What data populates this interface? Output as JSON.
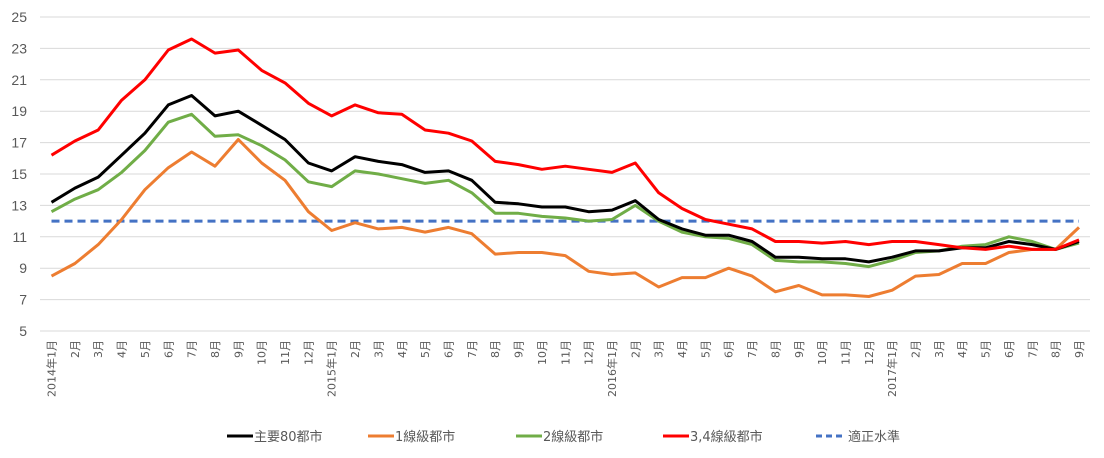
{
  "chart_data": {
    "type": "line",
    "title": "",
    "xlabel": "",
    "ylabel": "",
    "ylim": [
      5,
      25
    ],
    "yticks": [
      5,
      7,
      9,
      11,
      13,
      15,
      17,
      19,
      21,
      23,
      25
    ],
    "grid": true,
    "legend_position": "bottom",
    "categories": [
      "2014年1月",
      "2月",
      "3月",
      "4月",
      "5月",
      "6月",
      "7月",
      "8月",
      "9月",
      "10月",
      "11月",
      "12月",
      "2015年1月",
      "2月",
      "3月",
      "4月",
      "5月",
      "6月",
      "7月",
      "8月",
      "9月",
      "10月",
      "11月",
      "12月",
      "2016年1月",
      "2月",
      "3月",
      "4月",
      "5月",
      "6月",
      "7月",
      "8月",
      "9月",
      "10月",
      "11月",
      "12月",
      "2017年1月",
      "2月",
      "3月",
      "4月",
      "5月",
      "6月",
      "7月",
      "8月",
      "9月"
    ],
    "series": [
      {
        "name": "主要80都市",
        "color": "#000000",
        "style": "solid",
        "values": [
          13.2,
          14.1,
          14.8,
          16.2,
          17.6,
          19.4,
          20.0,
          18.7,
          19.0,
          18.1,
          17.2,
          15.7,
          15.2,
          16.1,
          15.8,
          15.6,
          15.1,
          15.2,
          14.6,
          13.2,
          13.1,
          12.9,
          12.9,
          12.6,
          12.7,
          13.3,
          12.1,
          11.5,
          11.1,
          11.1,
          10.7,
          9.7,
          9.7,
          9.6,
          9.6,
          9.4,
          9.7,
          10.1,
          10.1,
          10.3,
          10.3,
          10.7,
          10.5,
          10.2,
          10.7
        ]
      },
      {
        "name": "1線級都市",
        "color": "#ED7D31",
        "style": "solid",
        "values": [
          8.5,
          9.3,
          10.5,
          12.1,
          14.0,
          15.4,
          16.4,
          15.5,
          17.2,
          15.7,
          14.6,
          12.6,
          11.4,
          11.9,
          11.5,
          11.6,
          11.3,
          11.6,
          11.2,
          9.9,
          10.0,
          10.0,
          9.8,
          8.8,
          8.6,
          8.7,
          7.8,
          8.4,
          8.4,
          9.0,
          8.5,
          7.5,
          7.9,
          7.3,
          7.3,
          7.2,
          7.6,
          8.5,
          8.6,
          9.3,
          9.3,
          10.0,
          10.2,
          10.2,
          11.6
        ]
      },
      {
        "name": "2線級都市",
        "color": "#70AD47",
        "style": "solid",
        "values": [
          12.6,
          13.4,
          14.0,
          15.1,
          16.5,
          18.3,
          18.8,
          17.4,
          17.5,
          16.8,
          15.9,
          14.5,
          14.2,
          15.2,
          15.0,
          14.7,
          14.4,
          14.6,
          13.8,
          12.5,
          12.5,
          12.3,
          12.2,
          12.0,
          12.1,
          13.0,
          12.0,
          11.3,
          11.0,
          10.9,
          10.5,
          9.5,
          9.4,
          9.4,
          9.3,
          9.1,
          9.5,
          10.0,
          10.1,
          10.4,
          10.5,
          11.0,
          10.7,
          10.2,
          10.6
        ]
      },
      {
        "name": "3,4線級都市",
        "color": "#FF0000",
        "style": "solid",
        "values": [
          16.2,
          17.1,
          17.8,
          19.7,
          21.0,
          22.9,
          23.6,
          22.7,
          22.9,
          21.6,
          20.8,
          19.5,
          18.7,
          19.4,
          18.9,
          18.8,
          17.8,
          17.6,
          17.1,
          15.8,
          15.6,
          15.3,
          15.5,
          15.3,
          15.1,
          15.7,
          13.8,
          12.8,
          12.1,
          11.8,
          11.5,
          10.7,
          10.7,
          10.6,
          10.7,
          10.5,
          10.7,
          10.7,
          10.5,
          10.3,
          10.2,
          10.4,
          10.2,
          10.2,
          10.8
        ]
      },
      {
        "name": "適正水準",
        "color": "#4472C4",
        "style": "dashed",
        "values": [
          12,
          12,
          12,
          12,
          12,
          12,
          12,
          12,
          12,
          12,
          12,
          12,
          12,
          12,
          12,
          12,
          12,
          12,
          12,
          12,
          12,
          12,
          12,
          12,
          12,
          12,
          12,
          12,
          12,
          12,
          12,
          12,
          12,
          12,
          12,
          12,
          12,
          12,
          12,
          12,
          12,
          12,
          12,
          12,
          12
        ]
      }
    ]
  }
}
